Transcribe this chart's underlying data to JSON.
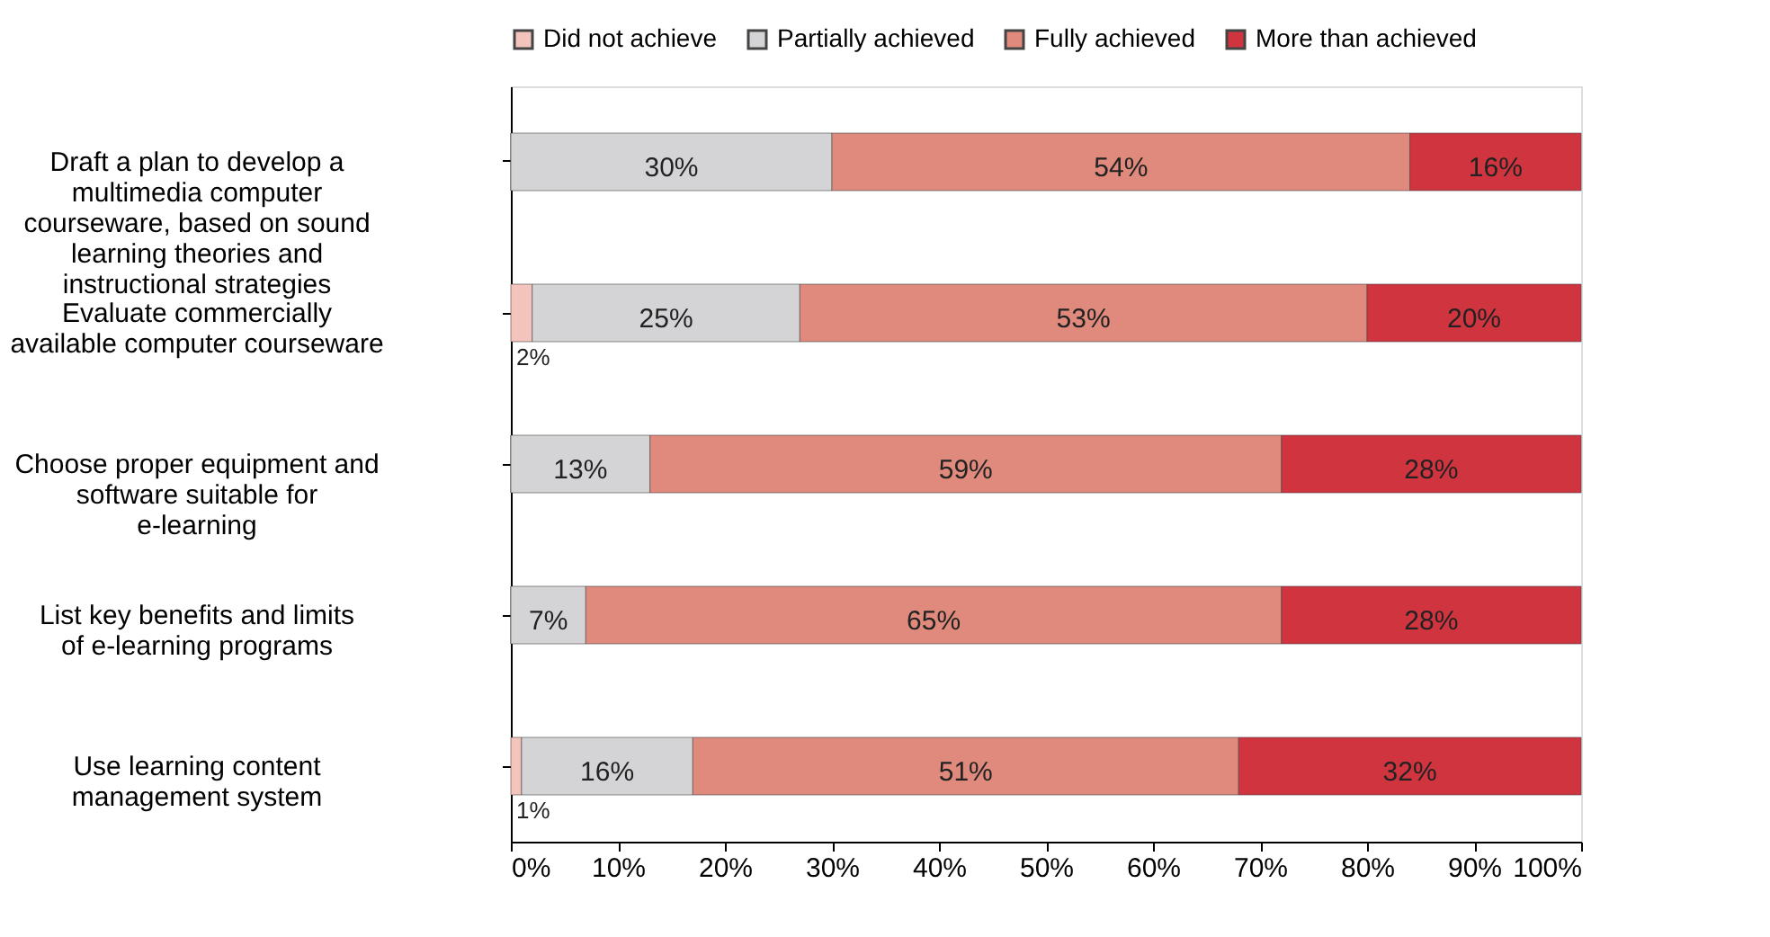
{
  "chart_data": {
    "type": "bar",
    "orientation": "horizontal",
    "stacked": true,
    "categories": [
      "Draft a plan to develop a multimedia computer courseware, based on sound learning theories and instructional strategies",
      "Evaluate commercially available computer courseware",
      "Choose proper equipment and software suitable for e-learning",
      "List key benefits and limits of e-learning programs",
      "Use learning content management system"
    ],
    "series": [
      {
        "name": "Did not achieve",
        "color": "#f2c4bb",
        "values": [
          0,
          2,
          0,
          0,
          1
        ],
        "value_labels": [
          null,
          "2%",
          null,
          null,
          "1%"
        ]
      },
      {
        "name": "Partially achieved",
        "color": "#d4d4d6",
        "values": [
          30,
          25,
          13,
          7,
          16
        ],
        "value_labels": [
          "30%",
          "25%",
          "13%",
          "7%",
          "16%"
        ]
      },
      {
        "name": "Fully achieved",
        "color": "#df8a7c",
        "values": [
          54,
          53,
          59,
          65,
          51
        ],
        "value_labels": [
          "54%",
          "53%",
          "59%",
          "65%",
          "51%"
        ]
      },
      {
        "name": "More than achieved",
        "color": "#cf343f",
        "values": [
          16,
          20,
          28,
          28,
          32
        ],
        "value_labels": [
          "16%",
          "20%",
          "28%",
          "28%",
          "32%"
        ]
      }
    ],
    "xlim": [
      0,
      100
    ],
    "xticks": [
      {
        "value": 0,
        "label": "0%"
      },
      {
        "value": 10,
        "label": "10%"
      },
      {
        "value": 20,
        "label": "20%"
      },
      {
        "value": 30,
        "label": "30%"
      },
      {
        "value": 40,
        "label": "40%"
      },
      {
        "value": 50,
        "label": "50%"
      },
      {
        "value": 60,
        "label": "60%"
      },
      {
        "value": 70,
        "label": "70%"
      },
      {
        "value": 80,
        "label": "80%"
      },
      {
        "value": 90,
        "label": "90%"
      },
      {
        "value": 100,
        "label": "100%"
      }
    ],
    "grid": false,
    "legend": "top"
  }
}
